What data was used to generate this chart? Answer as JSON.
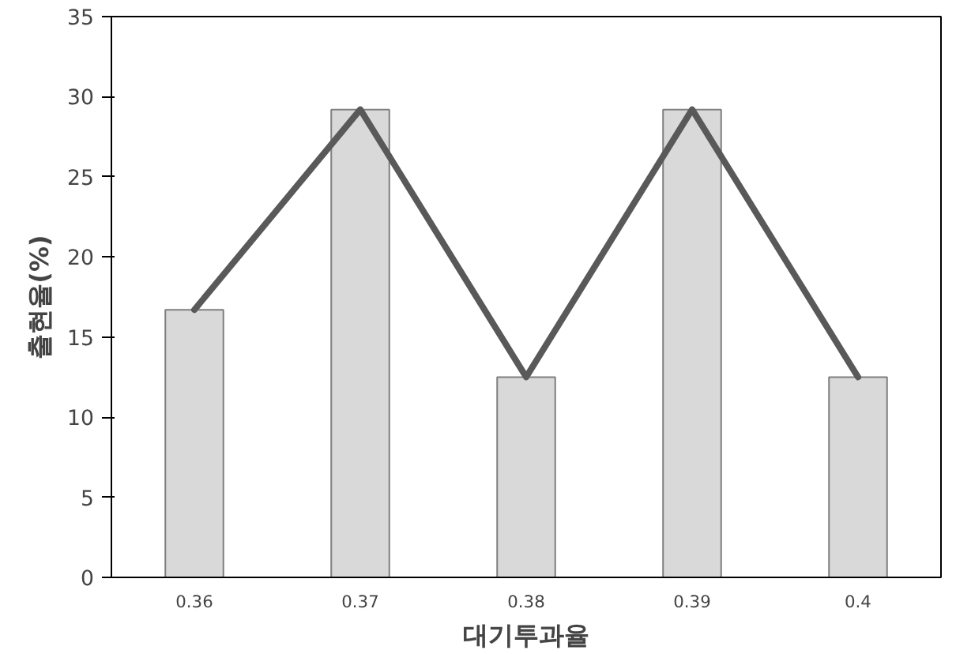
{
  "chart_data": {
    "type": "bar",
    "xlabel": "대기투과율",
    "ylabel": "출현율(%)",
    "categories": [
      "0.36",
      "0.37",
      "0.38",
      "0.39",
      "0.4"
    ],
    "series": [
      {
        "color": "#d9d9d9",
        "values": [
          16.7,
          29.2,
          12.5,
          29.2,
          12.5
        ]
      },
      {
        "type": "line",
        "color": "#595959",
        "values": [
          16.7,
          29.2,
          12.5,
          29.2,
          12.5
        ]
      }
    ],
    "ylim": [
      0,
      35
    ],
    "yticks": [
      0,
      5,
      10,
      15,
      20,
      25,
      30,
      35
    ],
    "grid": false
  }
}
